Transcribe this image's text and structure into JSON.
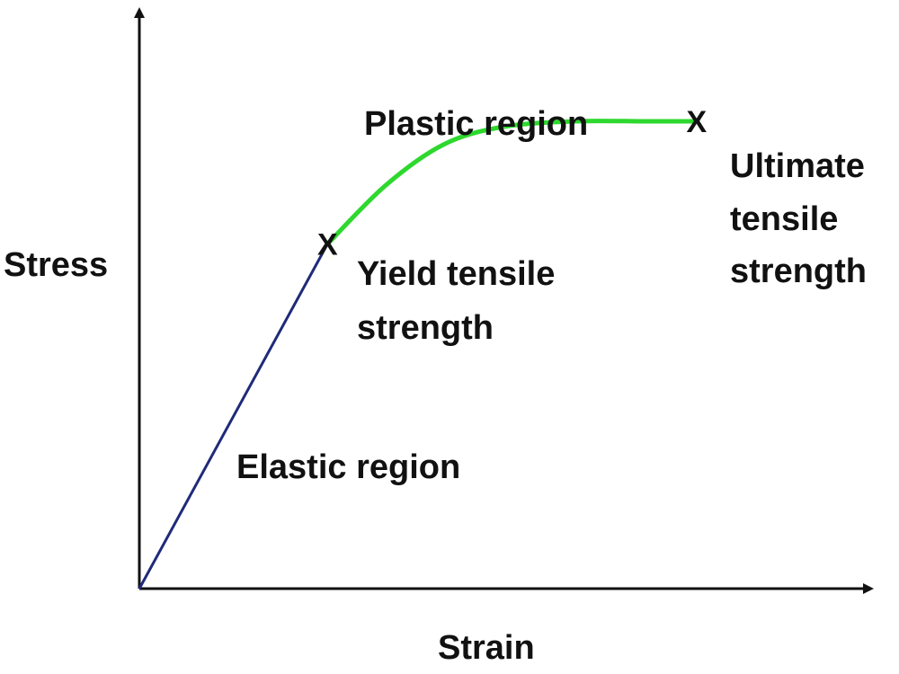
{
  "chart_data": {
    "type": "line",
    "xlabel": "Strain",
    "ylabel": "Stress",
    "series": [
      {
        "segment": "elastic",
        "color": "#1f2a7a",
        "points": [
          [
            0,
            0
          ],
          [
            0.26,
            0.59
          ]
        ]
      },
      {
        "segment": "plastic",
        "color": "#2ed82e",
        "points": [
          [
            0.26,
            0.59
          ],
          [
            0.34,
            0.69
          ],
          [
            0.42,
            0.76
          ],
          [
            0.5,
            0.79
          ],
          [
            0.6,
            0.8
          ],
          [
            0.7,
            0.8
          ],
          [
            0.77,
            0.8
          ]
        ]
      }
    ],
    "markers": [
      {
        "name": "yield",
        "symbol": "X",
        "color": "#cc1111",
        "x": 0.26,
        "y": 0.59
      },
      {
        "name": "ultimate",
        "symbol": "X",
        "color": "#cc1111",
        "x": 0.77,
        "y": 0.8
      }
    ],
    "annotations": {
      "plastic": "Plastic region",
      "elastic": "Elastic region",
      "yield": [
        "Yield tensile",
        "strength"
      ],
      "ultimate": [
        "Ultimate",
        "tensile",
        "strength"
      ]
    },
    "grid": false,
    "axis_ticks": false
  }
}
